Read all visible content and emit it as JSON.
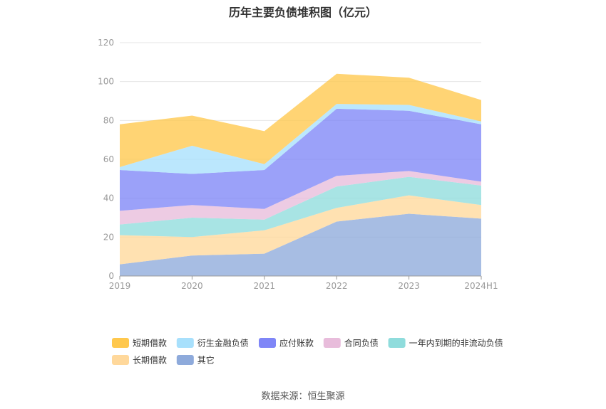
{
  "chart_data": {
    "type": "area",
    "stacked": true,
    "title": "历年主要负债堆积图（亿元）",
    "x": [
      "2019",
      "2020",
      "2021",
      "2022",
      "2023",
      "2024H1"
    ],
    "ylim": [
      0,
      120
    ],
    "yticks": [
      0,
      20,
      40,
      60,
      80,
      100,
      120
    ],
    "grid": true,
    "legend_position": "bottom",
    "series": [
      {
        "name": "其它",
        "color": "#8eaadb",
        "values": [
          6,
          10.5,
          11.5,
          28,
          32,
          29.5
        ]
      },
      {
        "name": "长期借款",
        "color": "#ffd89b",
        "values": [
          15,
          9.5,
          12,
          7,
          9.5,
          7
        ]
      },
      {
        "name": "一年内到期的非流动负债",
        "color": "#8fdcdc",
        "values": [
          5.5,
          10,
          5.5,
          11,
          9.5,
          10
        ]
      },
      {
        "name": "合同负债",
        "color": "#e8bcdb",
        "values": [
          7,
          6.5,
          5.5,
          5.5,
          3,
          2
        ]
      },
      {
        "name": "应付账款",
        "color": "#7f86f7",
        "values": [
          21,
          16,
          20,
          34.5,
          31,
          29.5
        ]
      },
      {
        "name": "衍生金融负债",
        "color": "#a8e0fc",
        "values": [
          1.5,
          14.5,
          3,
          2.5,
          3,
          1.5
        ]
      },
      {
        "name": "短期借款",
        "color": "#ffc84d",
        "values": [
          22,
          15.5,
          17,
          15.5,
          14,
          11
        ]
      }
    ],
    "legend_order": [
      "短期借款",
      "衍生金融负债",
      "应付账款",
      "合同负债",
      "一年内到期的非流动负债",
      "长期借款",
      "其它"
    ]
  },
  "source": "数据来源：恒生聚源"
}
